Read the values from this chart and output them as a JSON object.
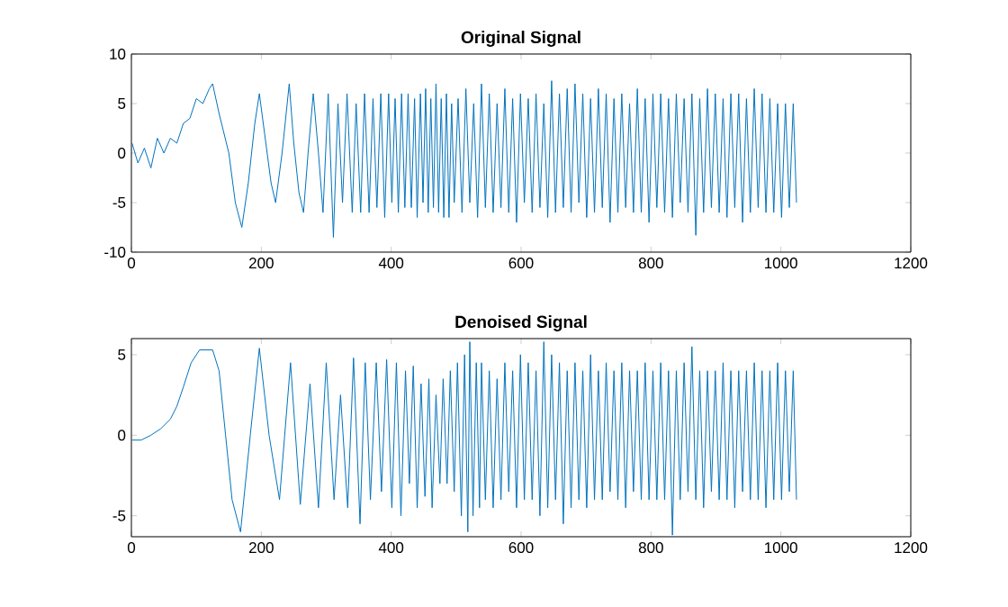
{
  "chart_data": [
    {
      "type": "line",
      "title": "Original Signal",
      "color": "#0072bd",
      "xlim": [
        0,
        1200
      ],
      "ylim": [
        -10,
        10
      ],
      "xticks": [
        0,
        200,
        400,
        600,
        800,
        1000,
        1200
      ],
      "yticks": [
        -10,
        -5,
        0,
        5,
        10
      ],
      "x": [
        1,
        10,
        20,
        30,
        40,
        50,
        60,
        70,
        80,
        90,
        100,
        110,
        120,
        125,
        135,
        150,
        160,
        170,
        180,
        190,
        197,
        205,
        215,
        222,
        232,
        243,
        250,
        258,
        265,
        272,
        280,
        288,
        295,
        303,
        311,
        318,
        325,
        332,
        340,
        346,
        353,
        359,
        366,
        372,
        378,
        384,
        390,
        396,
        401,
        406,
        411,
        416,
        421,
        426,
        431,
        436,
        440,
        445,
        449,
        453,
        457,
        461,
        465,
        469,
        473,
        477,
        481,
        485,
        489,
        493,
        497,
        503,
        509,
        515,
        521,
        527,
        533,
        539,
        545,
        551,
        557,
        563,
        569,
        575,
        581,
        587,
        593,
        599,
        605,
        611,
        617,
        623,
        629,
        635,
        641,
        647,
        653,
        659,
        665,
        671,
        677,
        683,
        689,
        695,
        701,
        707,
        713,
        719,
        725,
        731,
        737,
        743,
        749,
        755,
        761,
        767,
        773,
        779,
        785,
        791,
        797,
        803,
        809,
        815,
        821,
        827,
        833,
        839,
        845,
        851,
        857,
        863,
        869,
        875,
        881,
        887,
        893,
        899,
        905,
        911,
        917,
        923,
        929,
        935,
        941,
        947,
        953,
        959,
        965,
        971,
        977,
        983,
        989,
        995,
        1001,
        1007,
        1013,
        1019,
        1024
      ],
      "values": [
        1,
        -1,
        0.5,
        -1.5,
        1.5,
        0,
        1.5,
        1,
        3,
        3.5,
        5.5,
        5,
        6.5,
        7,
        4,
        0,
        -5,
        -7.5,
        -3,
        3,
        6,
        2,
        -3,
        -5,
        0,
        7,
        1,
        -4,
        -6,
        0,
        6,
        0,
        -6,
        6,
        -8.5,
        5,
        -5,
        6,
        -6,
        5,
        -6,
        6,
        -6,
        5.5,
        -5.5,
        6,
        -6.5,
        6,
        -5,
        5.5,
        -6,
        6,
        -5.5,
        6,
        -5.5,
        5.5,
        -6.5,
        6,
        -5,
        6.5,
        -6,
        5.5,
        -5.5,
        7,
        -6,
        5.5,
        -6.5,
        6,
        -6.5,
        5,
        -5,
        5.5,
        -6,
        6.5,
        -5,
        5,
        -6.5,
        7,
        -5.5,
        6,
        -6,
        5,
        -5.5,
        6.5,
        -6,
        5.5,
        -7,
        6,
        -5,
        5.5,
        -6,
        6,
        -5.5,
        5,
        -6.5,
        7.3,
        -6,
        6,
        -5.5,
        6.5,
        -6,
        7,
        -5,
        6,
        -6.5,
        5.5,
        -6,
        6.5,
        -5.5,
        6,
        -7,
        5.5,
        -6,
        6,
        -5.5,
        5,
        -6,
        6.5,
        -6,
        5.5,
        -7,
        6,
        -5.5,
        6,
        -6,
        5.5,
        -6.5,
        6,
        -5,
        5.5,
        -6,
        6,
        -8.3,
        5.5,
        -6,
        6.5,
        -5.5,
        6,
        -6,
        5.5,
        -6.5,
        6,
        -5.5,
        6,
        -7,
        5.5,
        -6,
        6.5,
        -5.5,
        6,
        -6,
        5.5,
        -6,
        5,
        -6.5,
        5,
        -5.5,
        5,
        -5
      ]
    },
    {
      "type": "line",
      "title": "Denoised Signal",
      "color": "#0072bd",
      "xlim": [
        0,
        1200
      ],
      "ylim": [
        -6.3,
        6
      ],
      "xticks": [
        0,
        200,
        400,
        600,
        800,
        1000,
        1200
      ],
      "yticks": [
        -5,
        0,
        5
      ],
      "x": [
        1,
        15,
        30,
        45,
        60,
        70,
        80,
        92,
        105,
        125,
        135,
        145,
        155,
        168,
        183,
        197,
        212,
        228,
        245,
        260,
        275,
        288,
        300,
        312,
        322,
        333,
        342,
        352,
        360,
        368,
        377,
        385,
        393,
        401,
        408,
        415,
        422,
        428,
        434,
        440,
        446,
        452,
        458,
        463,
        469,
        475,
        480,
        486,
        491,
        497,
        502,
        508,
        513,
        518,
        521,
        526,
        531,
        536,
        539,
        545,
        551,
        557,
        563,
        569,
        575,
        581,
        587,
        593,
        599,
        605,
        611,
        617,
        623,
        629,
        635,
        641,
        647,
        653,
        659,
        665,
        671,
        677,
        683,
        689,
        695,
        701,
        707,
        713,
        719,
        725,
        731,
        737,
        743,
        749,
        755,
        761,
        767,
        773,
        779,
        785,
        791,
        797,
        803,
        809,
        815,
        821,
        827,
        833,
        839,
        845,
        851,
        857,
        863,
        869,
        875,
        881,
        887,
        893,
        899,
        905,
        911,
        917,
        923,
        929,
        935,
        941,
        947,
        953,
        959,
        965,
        971,
        977,
        983,
        989,
        995,
        1001,
        1007,
        1013,
        1019,
        1024
      ],
      "values": [
        -0.3,
        -0.3,
        0,
        0.4,
        1,
        1.8,
        3,
        4.5,
        5.3,
        5.3,
        4,
        0,
        -4,
        -6,
        0,
        5.4,
        0,
        -4,
        4.5,
        -4.3,
        3.2,
        -4.5,
        4.5,
        -4,
        2.5,
        -4.5,
        4.8,
        -5.5,
        4.5,
        -4,
        4.5,
        -3.5,
        4.7,
        -4.5,
        4.5,
        -5,
        4,
        -3,
        4.3,
        -4.5,
        3.2,
        -3.8,
        3.5,
        -4.5,
        2.5,
        -3,
        3.5,
        -3,
        4,
        -3.5,
        4.5,
        -5,
        5,
        -6,
        5.8,
        -5,
        4.5,
        -4.5,
        4.5,
        -4,
        4,
        -4.5,
        3.5,
        -4,
        4.5,
        -3.5,
        4,
        -4.5,
        5,
        -4,
        4.5,
        -4,
        4,
        -5,
        5.8,
        -4.5,
        5,
        -4,
        4.5,
        -5.5,
        4,
        -4.5,
        4.5,
        -4,
        4,
        -4.5,
        5,
        -4,
        4,
        -4,
        4.5,
        -3.5,
        4,
        -4,
        4.5,
        -4.5,
        4,
        -3.5,
        4,
        -4,
        4.5,
        -4,
        4,
        -4,
        4.5,
        -4,
        4,
        -6.2,
        4,
        -4,
        4.5,
        -3.5,
        5.5,
        -4,
        4,
        -4.5,
        4,
        -3.5,
        4,
        -4,
        4.5,
        -4,
        4,
        -4.5,
        4,
        -3.5,
        4,
        -4,
        4.5,
        -4,
        4,
        -4.5,
        4,
        -4,
        4.5,
        -4,
        4,
        -3.5,
        4,
        -4
      ]
    }
  ]
}
